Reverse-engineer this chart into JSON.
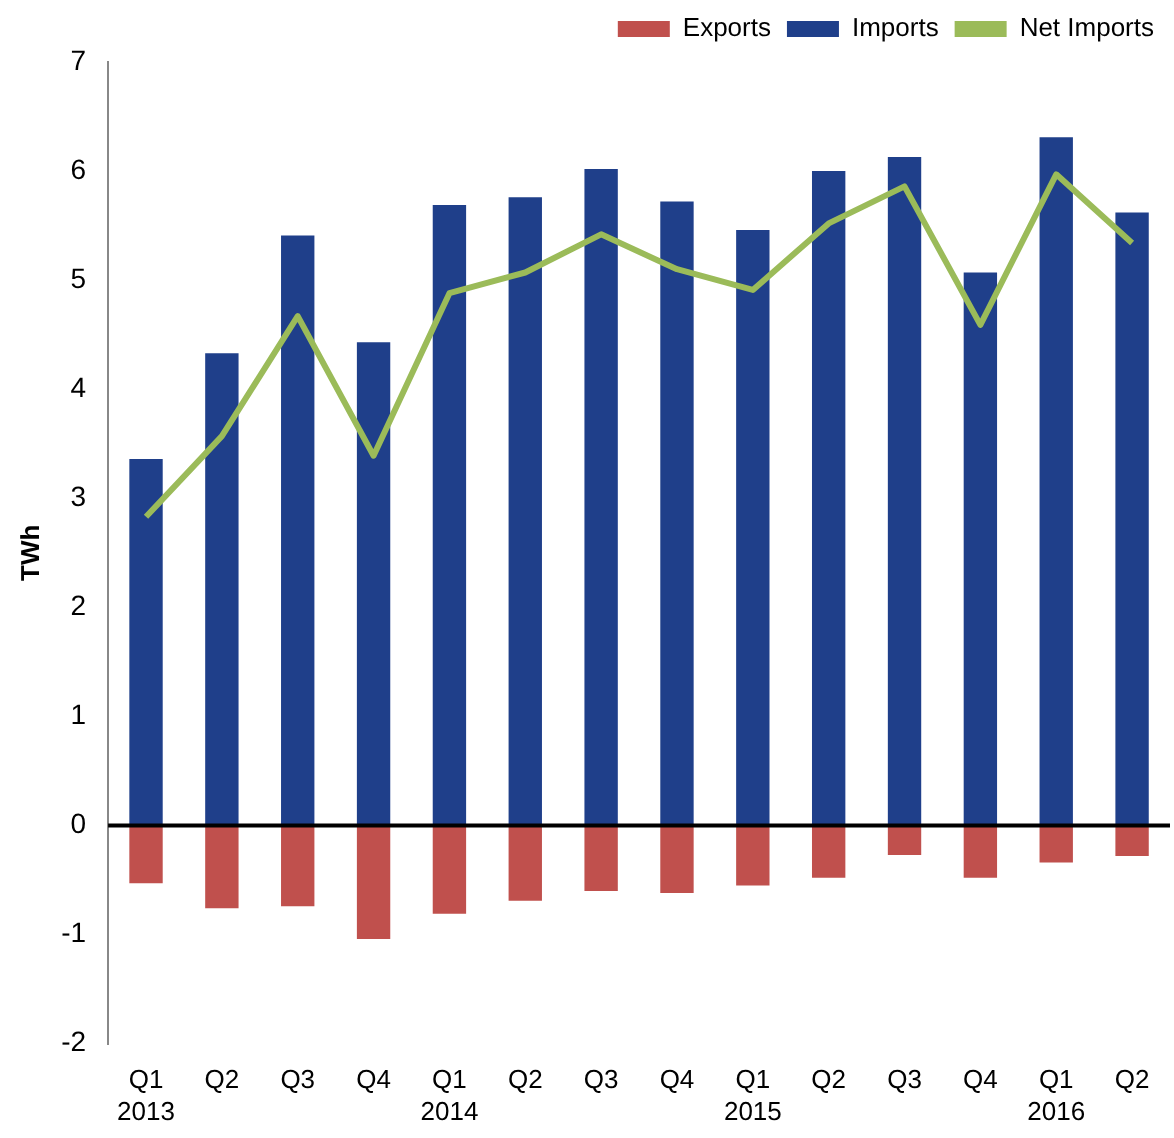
{
  "chart_data": {
    "type": "bar",
    "ylabel": "TWh",
    "stacked": true,
    "legend": "top",
    "grid": false,
    "marker": "none",
    "categories": [
      "Q1\n2013",
      "Q2",
      "Q3",
      "Q4",
      "Q1\n2014",
      "Q2",
      "Q3",
      "Q4",
      "Q1\n2015",
      "Q2",
      "Q3",
      "Q4",
      "Q1\n2016",
      "Q2"
    ],
    "series": [
      {
        "name": "Exports",
        "color": "#c0504d",
        "values": [
          -0.53,
          -0.76,
          -0.74,
          -1.04,
          -0.81,
          -0.69,
          -0.6,
          -0.62,
          -0.55,
          -0.48,
          -0.27,
          -0.48,
          -0.34,
          -0.28
        ]
      },
      {
        "name": "Imports",
        "color": "#1f3f8a",
        "values": [
          3.36,
          4.33,
          5.41,
          4.43,
          5.69,
          5.76,
          6.02,
          5.72,
          5.46,
          6.0,
          6.13,
          5.07,
          6.31,
          5.62
        ]
      },
      {
        "name": "Net Imports",
        "type": "line",
        "color": "#9bbb59",
        "values": [
          2.83,
          3.57,
          4.67,
          3.39,
          4.88,
          5.07,
          5.42,
          5.1,
          4.91,
          5.52,
          5.86,
          4.59,
          5.97,
          5.34
        ]
      }
    ],
    "ref_lines": [
      {
        "axis": "y",
        "value": 0,
        "color": "#000000"
      }
    ],
    "ylim": [
      -2,
      7
    ],
    "yticks": [
      -2,
      -1,
      0,
      1,
      2,
      3,
      4,
      5,
      6,
      7
    ]
  }
}
